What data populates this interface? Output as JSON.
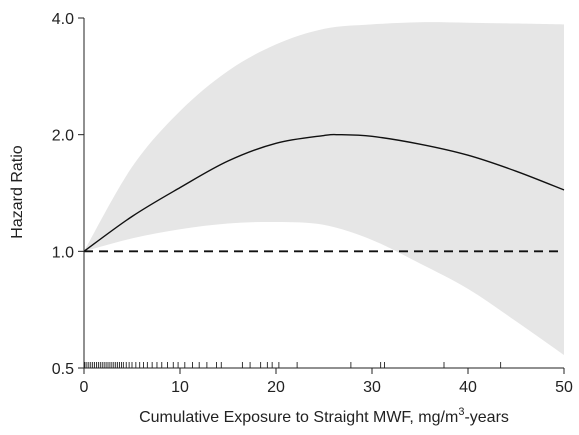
{
  "chart_data": {
    "type": "line",
    "title": "",
    "xlabel": "Cumulative Exposure to Straight MWF, mg/m",
    "xlabel_sup": "3",
    "xlabel_suffix": "-years",
    "ylabel": "Hazard Ratio",
    "y_scale": "log",
    "xlim": [
      0,
      50
    ],
    "ylim": [
      0.5,
      4.0
    ],
    "x_ticks": [
      0,
      10,
      20,
      30,
      40,
      50
    ],
    "x_tick_labels": [
      "0",
      "10",
      "20",
      "30",
      "40",
      "50"
    ],
    "y_ticks": [
      0.5,
      1.0,
      2.0,
      4.0
    ],
    "y_tick_labels": [
      "0.5",
      "1.0",
      "2.0",
      "4.0"
    ],
    "grid": false,
    "reference_line": {
      "y": 1.0,
      "style": "dashed"
    },
    "series": [
      {
        "x": [
          0,
          5,
          10,
          15,
          20,
          25,
          26.5,
          30,
          35,
          40,
          45,
          50
        ],
        "values": [
          1.0,
          1.23,
          1.46,
          1.71,
          1.9,
          1.99,
          2.0,
          1.98,
          1.89,
          1.77,
          1.61,
          1.44
        ]
      }
    ],
    "confidence_band": {
      "x": [
        0,
        5,
        10,
        15,
        20,
        25,
        30,
        35,
        40,
        45,
        50
      ],
      "lower": [
        1.0,
        1.08,
        1.14,
        1.18,
        1.19,
        1.17,
        1.07,
        0.93,
        0.8,
        0.66,
        0.54
      ],
      "upper": [
        1.0,
        1.65,
        2.3,
        2.92,
        3.42,
        3.75,
        3.85,
        3.9,
        3.89,
        3.87,
        3.85
      ]
    },
    "rug_x": [
      0.1,
      0.3,
      0.5,
      0.7,
      0.9,
      1.1,
      1.3,
      1.5,
      1.7,
      1.9,
      2.1,
      2.3,
      2.5,
      2.7,
      2.9,
      3.1,
      3.3,
      3.5,
      3.7,
      3.9,
      4.1,
      4.4,
      4.7,
      5.0,
      5.4,
      5.8,
      6.2,
      6.6,
      7.1,
      7.6,
      8.1,
      8.7,
      9.3,
      9.8,
      10.5,
      11.3,
      12.0,
      12.8,
      13.8,
      14.3,
      16.5,
      17.3,
      18.4,
      19.1,
      19.6,
      20.3,
      22.2,
      27.8,
      30.9,
      31.3,
      37.5,
      43.4
    ]
  }
}
